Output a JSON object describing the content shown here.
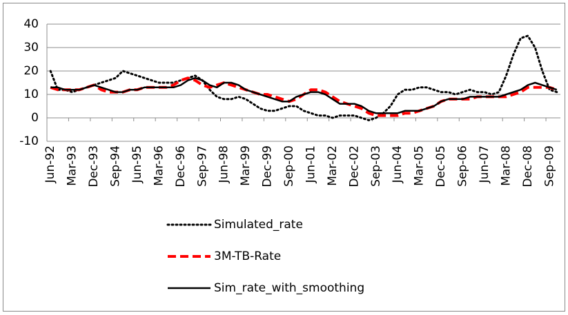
{
  "chart_data": {
    "type": "line",
    "categories": [
      "Jun-92",
      null,
      null,
      "Mar-93",
      null,
      null,
      "Dec-93",
      null,
      null,
      "Sep-94",
      null,
      null,
      "Jun-95",
      null,
      null,
      "Mar-96",
      null,
      null,
      "Dec-96",
      null,
      null,
      "Sep-97",
      null,
      null,
      "Jun-98",
      null,
      null,
      "Mar-99",
      null,
      null,
      "Dec-99",
      null,
      null,
      "Sep-00",
      null,
      null,
      "Jun-01",
      null,
      null,
      "Mar-02",
      null,
      null,
      "Dec-02",
      null,
      null,
      "Sep-03",
      null,
      null,
      "Jun-04",
      null,
      null,
      "Mar-05",
      null,
      null,
      "Dec-05",
      null,
      null,
      "Sep-06",
      null,
      null,
      "Jun-07",
      null,
      null,
      "Mar-08",
      null,
      null,
      "Dec-08",
      null,
      null,
      "Sep-09",
      null
    ],
    "series": [
      {
        "name": "Simulated_rate",
        "color": "#000000",
        "dash": "dotted",
        "values": [
          20,
          12,
          12,
          11,
          12,
          13,
          14,
          15,
          16,
          17,
          20,
          19,
          18,
          17,
          16,
          15,
          15,
          15,
          16,
          17,
          18,
          16,
          12,
          9,
          8,
          8,
          9,
          8,
          6,
          4,
          3,
          3,
          4,
          5,
          5,
          3,
          2,
          1,
          1,
          0,
          1,
          1,
          1,
          0,
          -1,
          0,
          2,
          5,
          10,
          12,
          12,
          13,
          13,
          12,
          11,
          11,
          10,
          11,
          12,
          11,
          11,
          10,
          11,
          18,
          27,
          34,
          35,
          30,
          20,
          12,
          11
        ]
      },
      {
        "name": "3M-TB-Rate",
        "color": "#ff0000",
        "dash": "dashed",
        "values": [
          13,
          12,
          12,
          12,
          12,
          13,
          14,
          12,
          11,
          11,
          11,
          12,
          12,
          13,
          13,
          13,
          13,
          14,
          16,
          17,
          16,
          14,
          13,
          14,
          15,
          14,
          13,
          12,
          11,
          10,
          10,
          9,
          8,
          7,
          8,
          10,
          12,
          12,
          11,
          9,
          7,
          6,
          5,
          4,
          2,
          1,
          1,
          1,
          1,
          2,
          2,
          3,
          4,
          5,
          7,
          8,
          8,
          8,
          8,
          9,
          9,
          9,
          9,
          9,
          10,
          11,
          13,
          13,
          13,
          13,
          12
        ]
      },
      {
        "name": "Sim_rate_with_smoothing",
        "color": "#000000",
        "dash": "solid",
        "values": [
          13,
          13,
          12,
          12,
          12,
          13,
          14,
          13,
          12,
          11,
          11,
          12,
          12,
          13,
          13,
          13,
          13,
          13,
          14,
          16,
          17,
          16,
          14,
          13,
          15,
          15,
          14,
          12,
          11,
          10,
          9,
          8,
          7,
          7,
          9,
          10,
          11,
          11,
          10,
          8,
          6,
          6,
          6,
          5,
          3,
          2,
          2,
          2,
          2,
          3,
          3,
          3,
          4,
          5,
          7,
          8,
          8,
          8,
          9,
          9,
          9,
          9,
          9,
          10,
          11,
          12,
          14,
          15,
          14,
          13,
          12
        ]
      }
    ],
    "ylim": [
      -10,
      40
    ],
    "yticks": [
      -10,
      0,
      10,
      20,
      30,
      40
    ],
    "grid": true,
    "legend": "bottom"
  }
}
